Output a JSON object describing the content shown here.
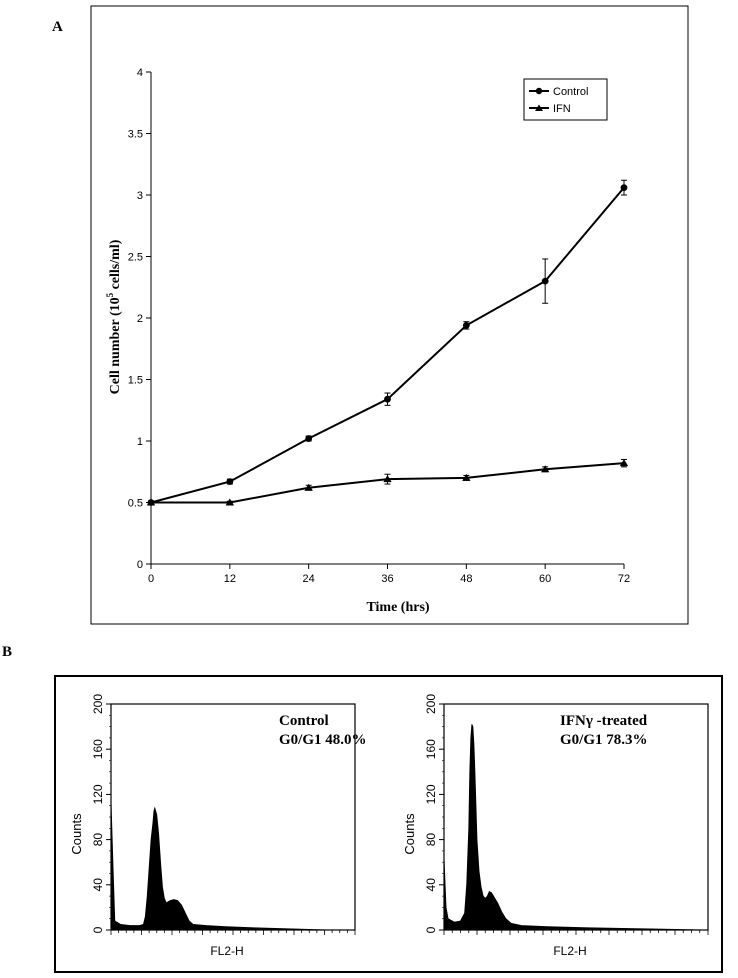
{
  "panel_a": {
    "label": "A"
  },
  "panel_b": {
    "label": "B"
  },
  "chart_data": [
    {
      "type": "line",
      "title": "",
      "xlabel": "Time (hrs)",
      "ylabel_main": "Cell number  (10",
      "ylabel_sup": "5",
      "ylabel_tail": " cells/ml)",
      "x": [
        0,
        12,
        24,
        36,
        48,
        60,
        72
      ],
      "x_ticks": [
        "0",
        "12",
        "24",
        "36",
        "48",
        "60",
        "72"
      ],
      "y_ticks": [
        "0",
        "0.5",
        "1",
        "1.5",
        "2",
        "2.5",
        "3",
        "3.5",
        "4"
      ],
      "xlim": [
        0,
        72
      ],
      "ylim": [
        0,
        4
      ],
      "grid": false,
      "legend_placement": "top-right",
      "series": [
        {
          "name": "Control",
          "marker": "circle",
          "values": [
            0.5,
            0.67,
            1.02,
            1.34,
            1.94,
            2.3,
            3.06
          ],
          "errors": [
            0.01,
            0.02,
            0.02,
            0.05,
            0.03,
            0.18,
            0.06
          ]
        },
        {
          "name": "IFN",
          "marker": "triangle",
          "values": [
            0.5,
            0.5,
            0.62,
            0.69,
            0.7,
            0.77,
            0.82
          ],
          "errors": [
            0.01,
            0.01,
            0.02,
            0.04,
            0.02,
            0.02,
            0.03
          ]
        }
      ]
    },
    {
      "type": "area",
      "annotation_line1": "Control",
      "annotation_line2": "G0/G1 48.0%",
      "xlabel": "FL2-H",
      "ylabel": "Counts",
      "y_ticks": [
        "0",
        "40",
        "80",
        "120",
        "160",
        "200"
      ],
      "ylim": [
        0,
        200
      ],
      "xlim": [
        0,
        256
      ],
      "points": [
        [
          0,
          115
        ],
        [
          2,
          60
        ],
        [
          4,
          8
        ],
        [
          10,
          5
        ],
        [
          20,
          4
        ],
        [
          30,
          4
        ],
        [
          34,
          5
        ],
        [
          36,
          12
        ],
        [
          38,
          30
        ],
        [
          40,
          55
        ],
        [
          42,
          80
        ],
        [
          44,
          95
        ],
        [
          45,
          105
        ],
        [
          46,
          108
        ],
        [
          48,
          102
        ],
        [
          50,
          85
        ],
        [
          52,
          60
        ],
        [
          54,
          38
        ],
        [
          56,
          28
        ],
        [
          58,
          24
        ],
        [
          62,
          26
        ],
        [
          66,
          27
        ],
        [
          70,
          26
        ],
        [
          74,
          22
        ],
        [
          78,
          15
        ],
        [
          82,
          8
        ],
        [
          86,
          5
        ],
        [
          100,
          4
        ],
        [
          120,
          3
        ],
        [
          150,
          2
        ],
        [
          190,
          1
        ],
        [
          230,
          0
        ],
        [
          256,
          0
        ]
      ]
    },
    {
      "type": "area",
      "annotation_line1": "IFNγ -treated",
      "annotation_line2": "G0/G1 78.3%",
      "xlabel": "FL2-H",
      "ylabel": "Counts",
      "y_ticks": [
        "0",
        "40",
        "80",
        "120",
        "160",
        "200"
      ],
      "ylim": [
        0,
        200
      ],
      "xlim": [
        0,
        256
      ],
      "points": [
        [
          0,
          65
        ],
        [
          2,
          20
        ],
        [
          4,
          10
        ],
        [
          10,
          7
        ],
        [
          16,
          8
        ],
        [
          20,
          15
        ],
        [
          22,
          40
        ],
        [
          24,
          90
        ],
        [
          25,
          140
        ],
        [
          26,
          170
        ],
        [
          27,
          182
        ],
        [
          28,
          180
        ],
        [
          29,
          165
        ],
        [
          30,
          140
        ],
        [
          31,
          110
        ],
        [
          32,
          80
        ],
        [
          34,
          52
        ],
        [
          36,
          38
        ],
        [
          38,
          30
        ],
        [
          40,
          28
        ],
        [
          42,
          30
        ],
        [
          44,
          34
        ],
        [
          46,
          33
        ],
        [
          48,
          30
        ],
        [
          52,
          24
        ],
        [
          56,
          16
        ],
        [
          60,
          10
        ],
        [
          65,
          6
        ],
        [
          75,
          4
        ],
        [
          100,
          3
        ],
        [
          140,
          2
        ],
        [
          200,
          1
        ],
        [
          256,
          0
        ]
      ]
    }
  ]
}
